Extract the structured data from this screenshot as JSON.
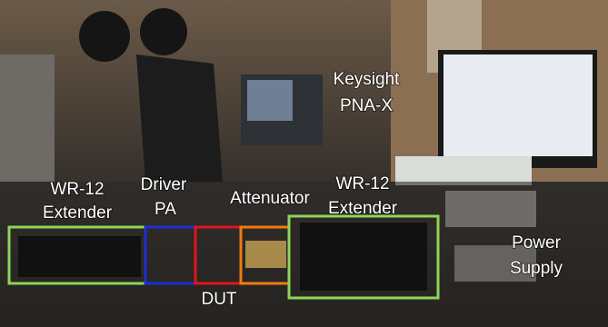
{
  "labels": [
    {
      "lines": [
        "Keysight",
        "PNA-X"
      ]
    },
    {
      "lines": [
        "WR-12",
        "Extender"
      ]
    },
    {
      "lines": [
        "Driver",
        "PA"
      ]
    },
    {
      "lines": [
        "Attenuator"
      ]
    },
    {
      "lines": [
        "WR-12",
        "Extender"
      ]
    },
    {
      "lines": [
        "DUT"
      ]
    },
    {
      "lines": [
        "Power",
        "Supply"
      ]
    }
  ]
}
